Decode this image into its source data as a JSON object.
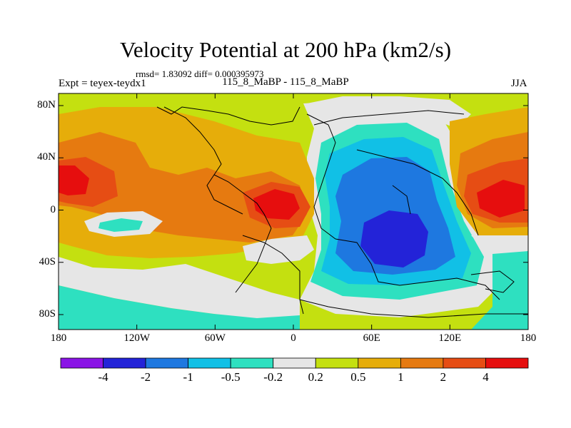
{
  "title": "Velocity Potential at 200 hPa (km2/s)",
  "stats": "rmsd= 1.83092 diff= 0.000395973",
  "experiment": "Expt = teyex-teydx1",
  "subtitle": "115_8_MaBP - 115_8_MaBP",
  "season": "JJA",
  "y_axis": {
    "ticks": [
      {
        "label": "80N",
        "lat": 80
      },
      {
        "label": "40N",
        "lat": 40
      },
      {
        "label": "0",
        "lat": 0
      },
      {
        "label": "40S",
        "lat": -40
      },
      {
        "label": "80S",
        "lat": -80
      }
    ]
  },
  "x_axis": {
    "ticks": [
      {
        "label": "180",
        "lon": -180
      },
      {
        "label": "120W",
        "lon": -120
      },
      {
        "label": "60W",
        "lon": -60
      },
      {
        "label": "0",
        "lon": 0
      },
      {
        "label": "60E",
        "lon": 60
      },
      {
        "label": "120E",
        "lon": 120
      },
      {
        "label": "180",
        "lon": 180
      }
    ]
  },
  "colorbar": {
    "colors": [
      "#8a14e6",
      "#2323d8",
      "#1e78e0",
      "#11c0e6",
      "#2ee0c0",
      "#e6e6e6",
      "#c4e010",
      "#e6ad0a",
      "#e67a10",
      "#e64d14",
      "#e60e0e"
    ],
    "labels": [
      "-4",
      "-2",
      "-1",
      "-0.5",
      "-0.2",
      "0.2",
      "0.5",
      "1",
      "2",
      "4"
    ]
  },
  "background_level": 6
}
